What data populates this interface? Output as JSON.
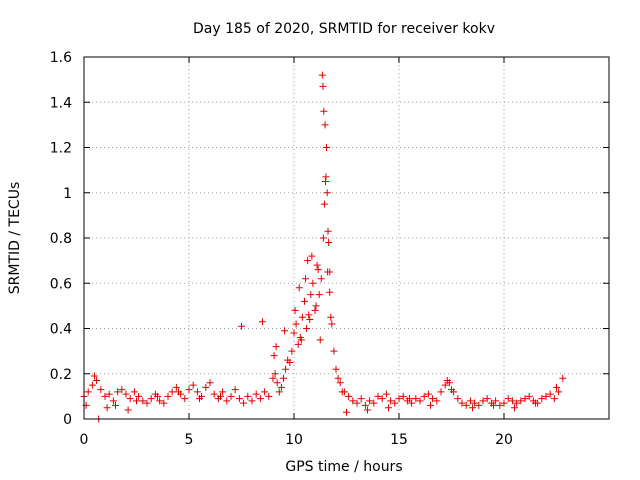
{
  "chart_data": {
    "type": "scatter",
    "title": "Day 185 of 2020, SRMTID for receiver kokv",
    "xlabel": "GPS time / hours",
    "ylabel": "SRMTID / TECUs",
    "xlim": [
      0,
      25
    ],
    "ylim": [
      0,
      1.6
    ],
    "xticks": [
      0,
      5,
      10,
      15,
      20
    ],
    "yticks": [
      0,
      0.2,
      0.4,
      0.6,
      0.8,
      1.0,
      1.2,
      1.4,
      1.6
    ],
    "xtick_labels": [
      "0",
      "5",
      "10",
      "15",
      "20"
    ],
    "ytick_labels": [
      "0",
      "0.2",
      "0.4",
      "0.6",
      "0.8",
      "1",
      "1.2",
      "1.4",
      "1.6"
    ],
    "grid": true,
    "marker": "+",
    "color": "#e00000",
    "series": [
      {
        "name": "SRMTID",
        "x": [
          0.0,
          0.2,
          0.4,
          0.6,
          0.8,
          1.0,
          1.2,
          1.4,
          1.6,
          1.8,
          2.0,
          2.2,
          2.4,
          2.6,
          2.8,
          3.0,
          3.2,
          3.4,
          3.6,
          3.8,
          4.0,
          4.2,
          4.4,
          4.6,
          4.8,
          5.0,
          5.2,
          5.4,
          5.6,
          5.8,
          6.0,
          6.2,
          6.4,
          6.6,
          6.8,
          7.0,
          7.2,
          7.4,
          7.6,
          7.8,
          8.0,
          8.2,
          8.4,
          8.6,
          8.8,
          9.0,
          9.1,
          9.2,
          9.3,
          9.4,
          9.5,
          9.6,
          9.7,
          9.8,
          9.9,
          10.0,
          10.1,
          10.2,
          10.3,
          10.4,
          10.5,
          10.6,
          10.7,
          10.8,
          10.9,
          11.0,
          11.1,
          11.2,
          11.3,
          11.4,
          11.45,
          11.5,
          11.55,
          11.6,
          11.7,
          11.8,
          11.9,
          12.0,
          12.2,
          12.4,
          12.6,
          12.8,
          13.0,
          13.2,
          13.4,
          13.6,
          13.8,
          14.0,
          14.2,
          14.4,
          14.6,
          14.8,
          15.0,
          15.2,
          15.4,
          15.6,
          15.8,
          16.0,
          16.2,
          16.4,
          16.6,
          16.8,
          17.0,
          17.2,
          17.4,
          17.6,
          17.8,
          18.0,
          18.2,
          18.4,
          18.6,
          18.8,
          19.0,
          19.2,
          19.4,
          19.6,
          19.8,
          20.0,
          20.2,
          20.4,
          20.6,
          20.8,
          21.0,
          21.2,
          21.4,
          21.6,
          21.8,
          22.0,
          22.2,
          22.4,
          22.6,
          22.8,
          0.1,
          0.5,
          0.7,
          1.1,
          1.5,
          2.1,
          2.5,
          3.5,
          4.5,
          5.5,
          6.5,
          7.5,
          8.5,
          9.05,
          9.15,
          9.55,
          10.05,
          10.25,
          10.35,
          10.55,
          10.65,
          10.75,
          10.85,
          11.05,
          11.15,
          11.25,
          11.35,
          11.38,
          11.42,
          11.48,
          11.52,
          11.58,
          11.62,
          11.65,
          11.7,
          11.75,
          12.1,
          12.3,
          12.5,
          13.5,
          14.5,
          15.5,
          16.5,
          17.3,
          17.5,
          18.5,
          19.5,
          20.5,
          21.5,
          22.5
        ],
        "y": [
          0.1,
          0.12,
          0.15,
          0.17,
          0.13,
          0.1,
          0.11,
          0.08,
          0.12,
          0.13,
          0.11,
          0.09,
          0.12,
          0.1,
          0.08,
          0.07,
          0.09,
          0.11,
          0.08,
          0.07,
          0.1,
          0.12,
          0.14,
          0.11,
          0.09,
          0.13,
          0.15,
          0.12,
          0.1,
          0.14,
          0.16,
          0.11,
          0.09,
          0.12,
          0.08,
          0.1,
          0.13,
          0.09,
          0.07,
          0.1,
          0.08,
          0.11,
          0.09,
          0.12,
          0.1,
          0.18,
          0.2,
          0.16,
          0.12,
          0.14,
          0.18,
          0.22,
          0.26,
          0.25,
          0.3,
          0.38,
          0.42,
          0.33,
          0.36,
          0.45,
          0.52,
          0.4,
          0.46,
          0.55,
          0.6,
          0.48,
          0.68,
          0.55,
          0.62,
          0.8,
          0.95,
          1.05,
          1.2,
          0.65,
          0.56,
          0.42,
          0.3,
          0.22,
          0.16,
          0.12,
          0.1,
          0.08,
          0.07,
          0.09,
          0.06,
          0.08,
          0.07,
          0.1,
          0.09,
          0.11,
          0.08,
          0.07,
          0.09,
          0.1,
          0.08,
          0.07,
          0.09,
          0.08,
          0.1,
          0.11,
          0.09,
          0.08,
          0.12,
          0.15,
          0.16,
          0.12,
          0.09,
          0.07,
          0.06,
          0.08,
          0.07,
          0.06,
          0.08,
          0.09,
          0.07,
          0.08,
          0.06,
          0.07,
          0.09,
          0.08,
          0.07,
          0.08,
          0.09,
          0.1,
          0.08,
          0.07,
          0.09,
          0.1,
          0.11,
          0.09,
          0.12,
          0.18,
          0.06,
          0.19,
          0.0,
          0.05,
          0.06,
          0.04,
          0.08,
          0.1,
          0.12,
          0.09,
          0.1,
          0.41,
          0.43,
          0.28,
          0.32,
          0.39,
          0.48,
          0.58,
          0.35,
          0.62,
          0.7,
          0.44,
          0.72,
          0.5,
          0.66,
          0.35,
          1.52,
          1.47,
          1.36,
          1.3,
          1.07,
          1.0,
          0.83,
          0.78,
          0.65,
          0.45,
          0.18,
          0.12,
          0.03,
          0.04,
          0.05,
          0.09,
          0.06,
          0.17,
          0.13,
          0.05,
          0.06,
          0.05,
          0.07,
          0.14
        ]
      }
    ]
  }
}
